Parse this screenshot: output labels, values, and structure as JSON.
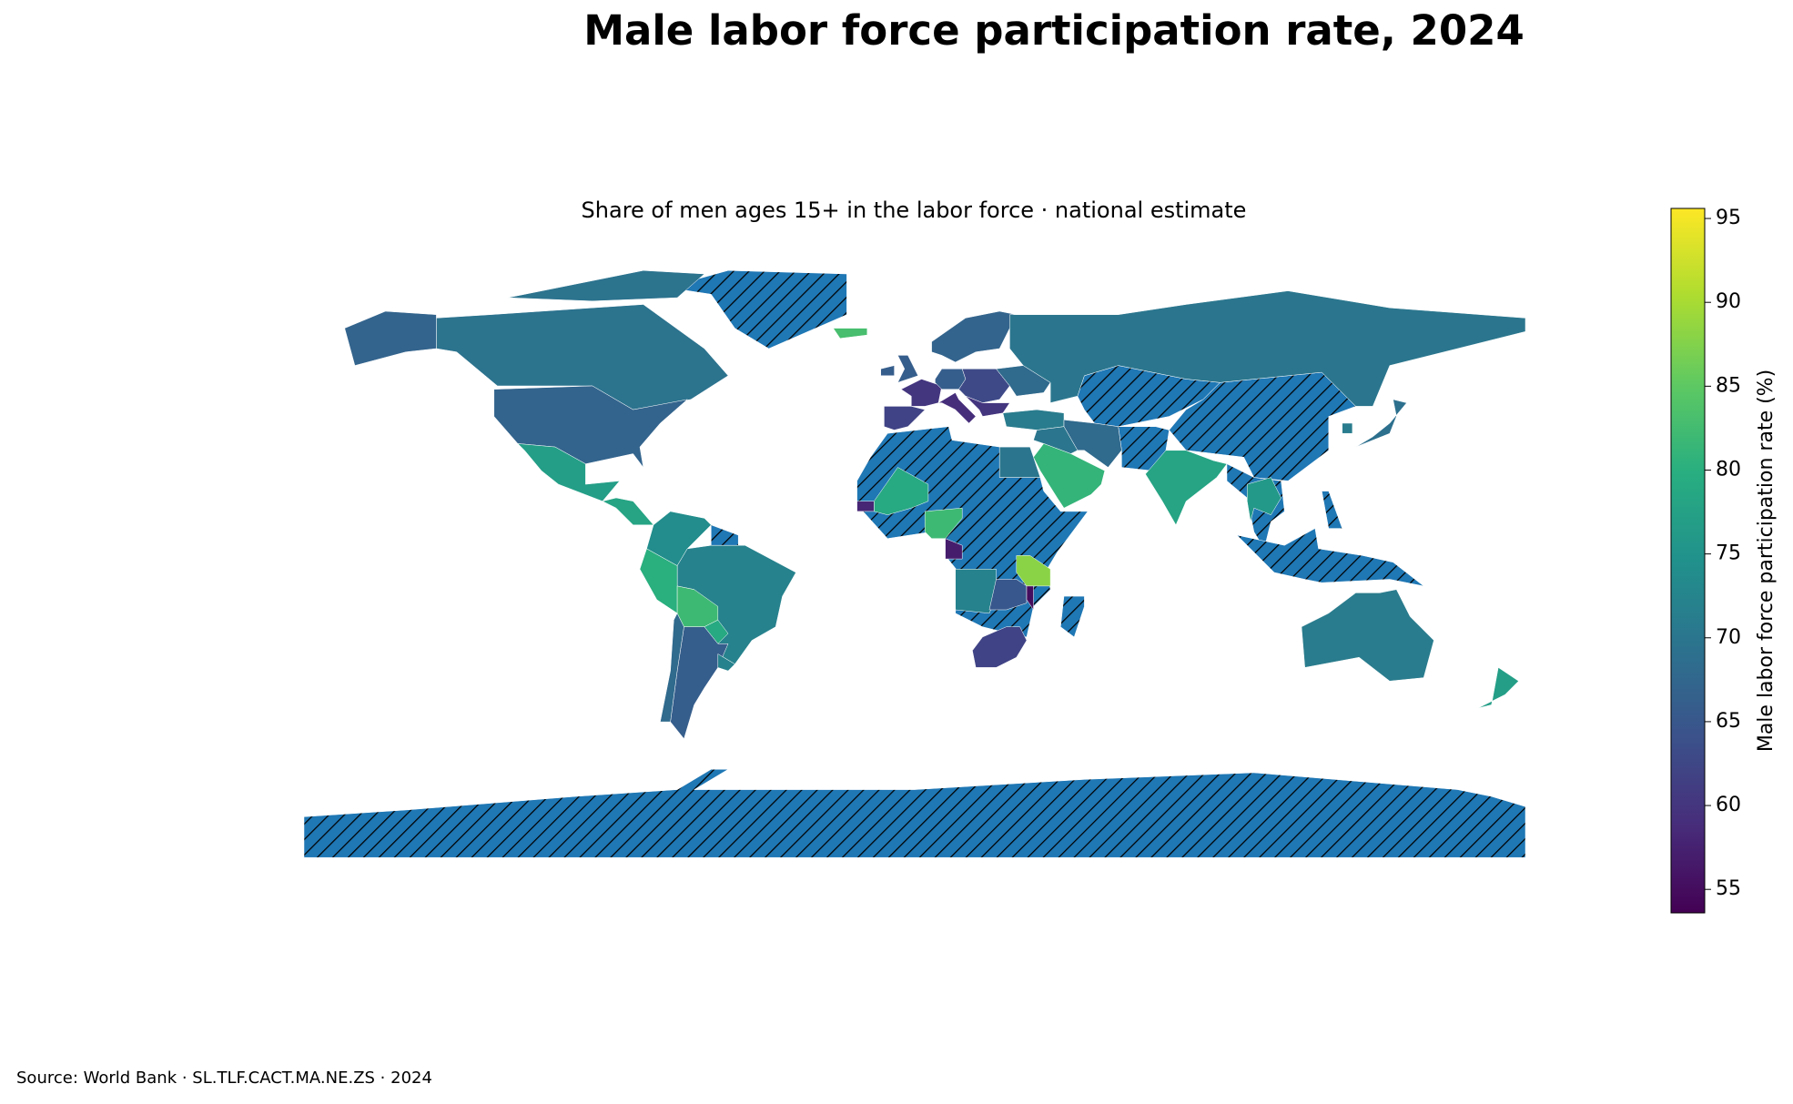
{
  "chart_data": {
    "type": "choropleth",
    "title": "Male labor force participation rate, 2024",
    "subtitle": "Share of men ages 15+ in the labor force · national estimate",
    "colorbar_label": "Male labor force participation rate (%)",
    "source": "Source: World Bank · SL.TLF.CACT.MA.NE.ZS · 2024",
    "colormap": "viridis",
    "clim": [
      53.6,
      95.6
    ],
    "cticks": [
      55,
      60,
      65,
      70,
      75,
      80,
      85,
      90,
      95
    ],
    "missing_color": "#1f77b4",
    "missing_hatch": true,
    "values": [
      69.5,
      67,
      77,
      78,
      74,
      72,
      80,
      82,
      79,
      66,
      68,
      72,
      83,
      66,
      66,
      60,
      62,
      66,
      59,
      67,
      63,
      60,
      71,
      68,
      70,
      69,
      71,
      68,
      70,
      81,
      70,
      79,
      82,
      58,
      57,
      72,
      88,
      55,
      65,
      62,
      78,
      76,
      71,
      77
    ]
  }
}
